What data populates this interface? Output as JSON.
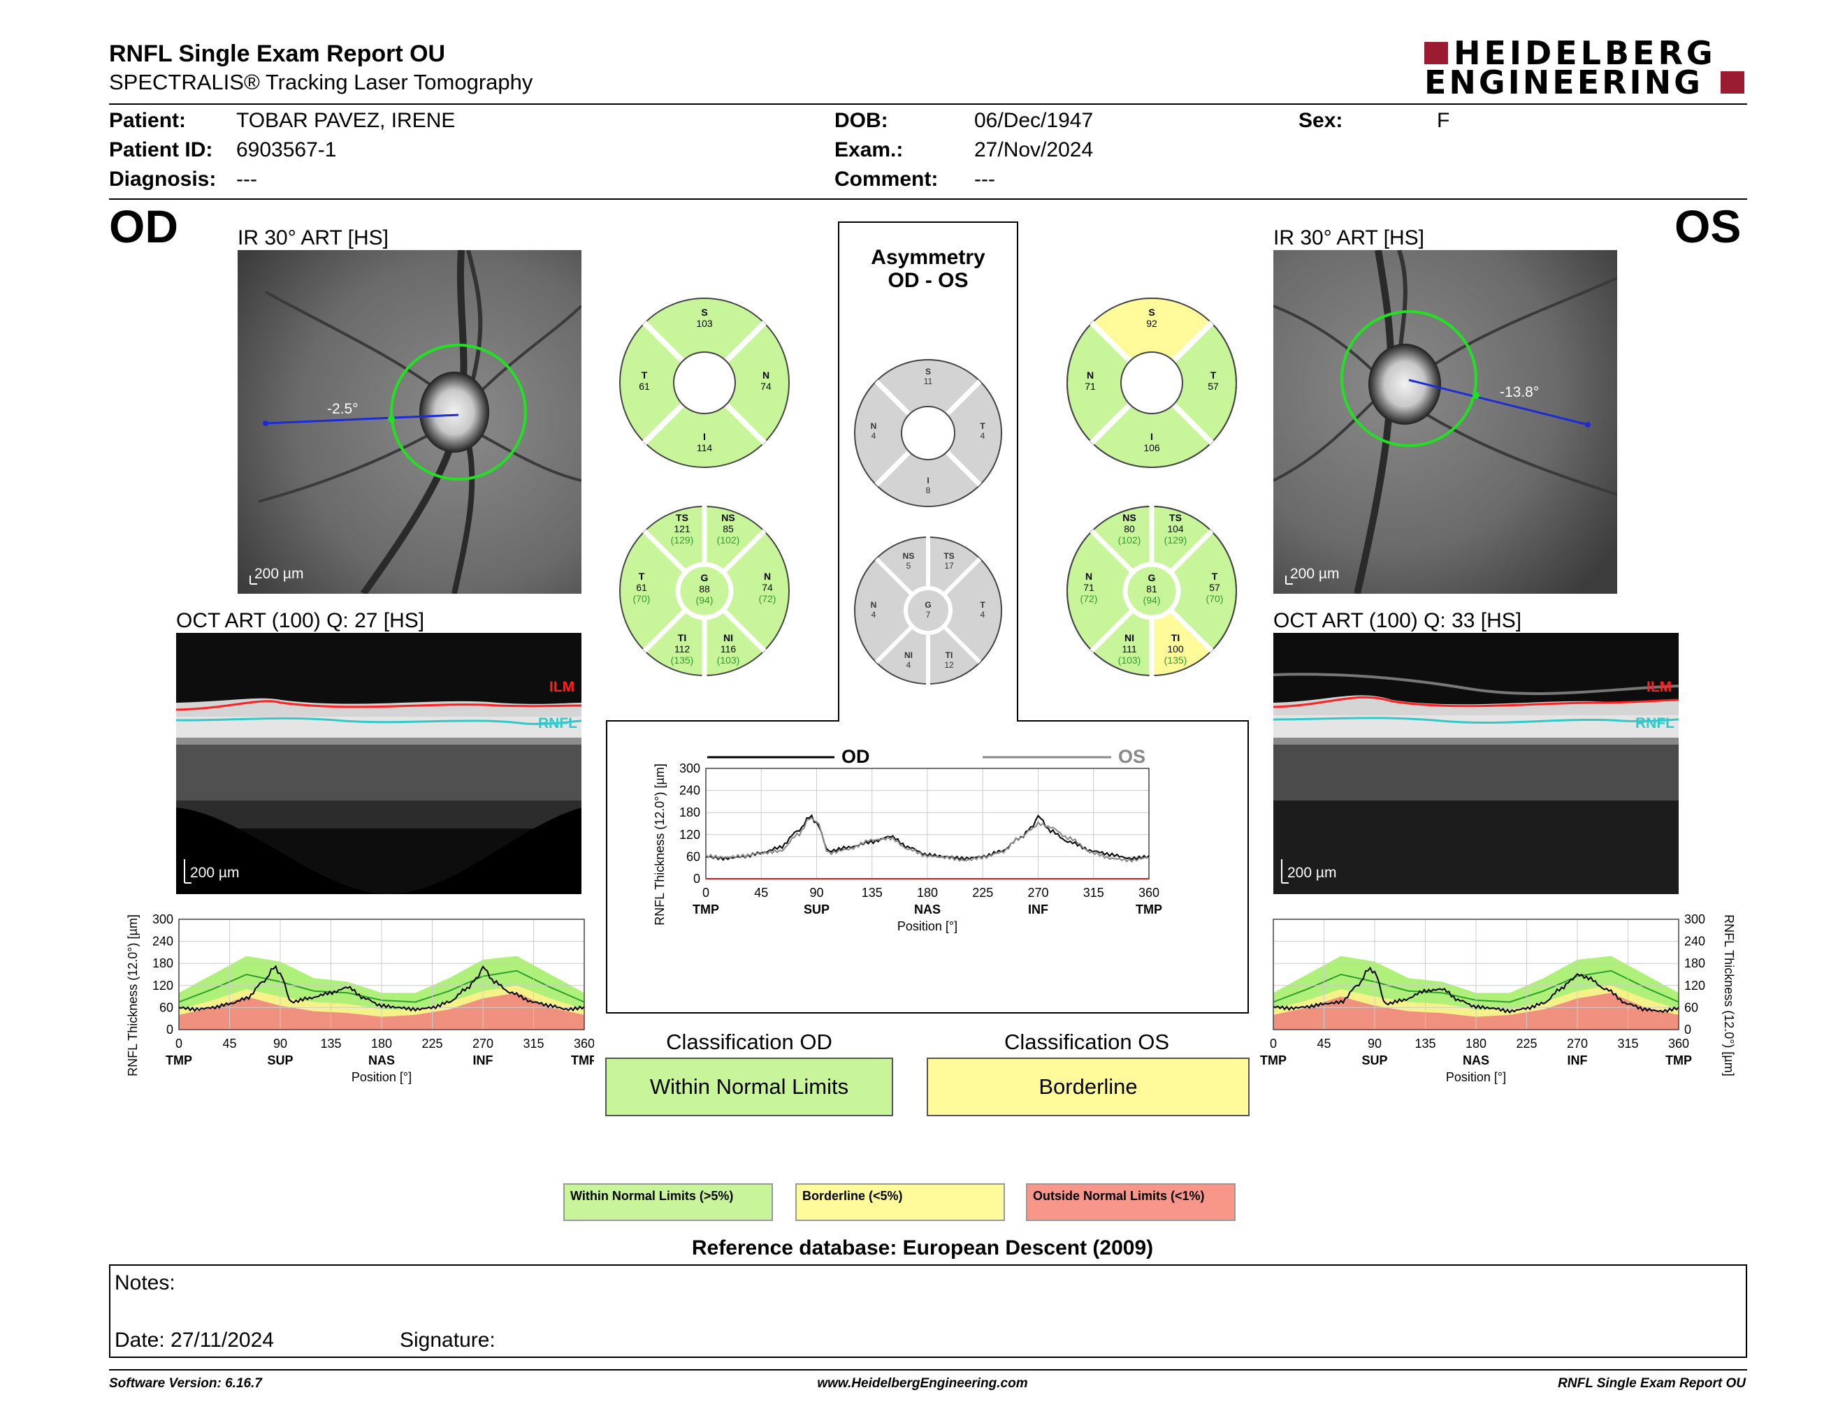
{
  "header": {
    "title": "RNFL Single Exam Report OU",
    "subtitle": "SPECTRALIS® Tracking Laser Tomography",
    "brand_line1": "HEIDELBERG",
    "brand_line2": "ENGINEERING"
  },
  "patient": {
    "patient_label": "Patient:",
    "patient_value": "TOBAR PAVEZ, IRENE",
    "id_label": "Patient ID:",
    "id_value": "6903567-1",
    "diagnosis_label": "Diagnosis:",
    "diagnosis_value": "---",
    "dob_label": "DOB:",
    "dob_value": "06/Dec/1947",
    "exam_label": "Exam.:",
    "exam_value": "27/Nov/2024",
    "comment_label": "Comment:",
    "comment_value": "---",
    "sex_label": "Sex:",
    "sex_value": "F"
  },
  "od": {
    "eye": "OD",
    "ir_title": "IR 30° ART [HS]",
    "angle": "-2.5°",
    "scale": "200 µm",
    "oct_title": "OCT ART (100) Q: 27 [HS]",
    "oct_scale": "200 µm",
    "ilm": "ILM",
    "rnfl": "RNFL",
    "quadrants": {
      "S": "103",
      "T": "61",
      "N": "74",
      "I": "114"
    },
    "sectors": {
      "TS": {
        "v": "121",
        "r": "(129)"
      },
      "NS": {
        "v": "85",
        "r": "(102)"
      },
      "T": {
        "v": "61",
        "r": "(70)"
      },
      "G": {
        "v": "88",
        "r": "(94)"
      },
      "N": {
        "v": "74",
        "r": "(72)"
      },
      "TI": {
        "v": "112",
        "r": "(135)"
      },
      "NI": {
        "v": "116",
        "r": "(103)"
      }
    }
  },
  "os": {
    "eye": "OS",
    "ir_title": "IR 30° ART [HS]",
    "angle": "-13.8°",
    "scale": "200 µm",
    "oct_title": "OCT ART (100) Q: 33 [HS]",
    "oct_scale": "200 µm",
    "ilm": "ILM",
    "rnfl": "RNFL",
    "quadrants": {
      "S": "92",
      "N": "71",
      "T": "57",
      "I": "106"
    },
    "sectors": {
      "NS": {
        "v": "80",
        "r": "(102)"
      },
      "TS": {
        "v": "104",
        "r": "(129)"
      },
      "N": {
        "v": "71",
        "r": "(72)"
      },
      "G": {
        "v": "81",
        "r": "(94)"
      },
      "T": {
        "v": "57",
        "r": "(70)"
      },
      "NI": {
        "v": "111",
        "r": "(103)"
      },
      "TI": {
        "v": "100",
        "r": "(135)"
      }
    }
  },
  "asymmetry": {
    "title_line1": "Asymmetry",
    "title_line2": "OD - OS",
    "quadrants": {
      "S": "11",
      "N": "4",
      "T": "4",
      "I": "8"
    },
    "sectors": {
      "NS": "5",
      "TS": "17",
      "N": "4",
      "G": "7",
      "T": "4",
      "NI": "4",
      "TI": "12"
    }
  },
  "chart_data": [
    {
      "type": "line",
      "name": "center-asymmetry-plot",
      "legend": [
        "OD",
        "OS"
      ],
      "ylabel": "RNFL Thickness (12.0°) [µm]",
      "xlabel": "Position [°]",
      "xticks": [
        "0",
        "45",
        "90",
        "135",
        "180",
        "225",
        "270",
        "315",
        "360"
      ],
      "xsectors": [
        "TMP",
        "SUP",
        "NAS",
        "INF",
        "TMP"
      ],
      "yticks": [
        "0",
        "60",
        "120",
        "180",
        "240",
        "300"
      ],
      "ylim": [
        0,
        300
      ],
      "xlim": [
        0,
        360
      ],
      "series": [
        {
          "name": "OD",
          "x": [
            0,
            15,
            30,
            45,
            60,
            75,
            85,
            90,
            100,
            115,
            135,
            150,
            165,
            180,
            195,
            210,
            225,
            240,
            255,
            265,
            270,
            280,
            295,
            315,
            330,
            345,
            360
          ],
          "values": [
            60,
            55,
            60,
            70,
            85,
            130,
            170,
            150,
            75,
            85,
            100,
            115,
            85,
            65,
            60,
            55,
            60,
            75,
            110,
            140,
            170,
            130,
            100,
            75,
            65,
            55,
            60
          ]
        },
        {
          "name": "OS",
          "x": [
            0,
            15,
            30,
            45,
            60,
            75,
            85,
            90,
            100,
            115,
            135,
            150,
            165,
            180,
            195,
            210,
            225,
            240,
            255,
            265,
            270,
            280,
            295,
            315,
            330,
            345,
            360
          ],
          "values": [
            62,
            58,
            62,
            70,
            75,
            120,
            165,
            155,
            70,
            80,
            105,
            110,
            80,
            62,
            58,
            50,
            58,
            72,
            110,
            135,
            150,
            140,
            110,
            70,
            55,
            50,
            58
          ]
        }
      ]
    },
    {
      "type": "line",
      "name": "od-thickness-profile",
      "ylabel": "RNFL Thickness (12.0°) [µm]",
      "xlabel": "Position [°]",
      "xticks": [
        "0",
        "45",
        "90",
        "135",
        "180",
        "225",
        "270",
        "315",
        "360"
      ],
      "xsectors": [
        "TMP",
        "SUP",
        "NAS",
        "INF",
        "TMP"
      ],
      "yticks": [
        "0",
        "60",
        "120",
        "180",
        "240",
        "300"
      ],
      "ylim": [
        0,
        300
      ],
      "series": [
        {
          "name": "OD",
          "x": [
            0,
            15,
            30,
            45,
            60,
            75,
            85,
            90,
            100,
            115,
            135,
            150,
            165,
            180,
            195,
            210,
            225,
            240,
            255,
            265,
            270,
            280,
            295,
            315,
            330,
            345,
            360
          ],
          "values": [
            60,
            55,
            60,
            70,
            85,
            130,
            170,
            150,
            75,
            85,
            100,
            115,
            85,
            65,
            60,
            55,
            60,
            75,
            110,
            140,
            170,
            130,
            100,
            75,
            65,
            55,
            60
          ]
        }
      ]
    },
    {
      "type": "line",
      "name": "os-thickness-profile",
      "ylabel": "RNFL Thickness (12.0°) [µm]",
      "xlabel": "Position [°]",
      "xticks": [
        "0",
        "45",
        "90",
        "135",
        "180",
        "225",
        "270",
        "315",
        "360"
      ],
      "xsectors": [
        "TMP",
        "SUP",
        "NAS",
        "INF",
        "TMP"
      ],
      "yticks": [
        "0",
        "60",
        "120",
        "180",
        "240",
        "300"
      ],
      "ylim": [
        0,
        300
      ],
      "series": [
        {
          "name": "OS",
          "x": [
            0,
            15,
            30,
            45,
            60,
            75,
            85,
            90,
            100,
            115,
            135,
            150,
            165,
            180,
            195,
            210,
            225,
            240,
            255,
            265,
            270,
            280,
            295,
            315,
            330,
            345,
            360
          ],
          "values": [
            62,
            58,
            62,
            70,
            75,
            120,
            165,
            155,
            70,
            80,
            105,
            110,
            80,
            62,
            58,
            50,
            58,
            72,
            110,
            135,
            150,
            140,
            110,
            70,
            55,
            50,
            58
          ]
        }
      ]
    }
  ],
  "classification": {
    "od_title": "Classification OD",
    "od_value": "Within Normal Limits",
    "os_title": "Classification OS",
    "os_value": "Borderline"
  },
  "legend": {
    "normal": "Within Normal Limits (>5%)",
    "borderline": "Borderline (<5%)",
    "outside": "Outside Normal Limits (<1%)"
  },
  "reference": "Reference database: European Descent (2009)",
  "notes": {
    "notes_label": "Notes:",
    "date_label": "Date: 27/11/2024",
    "signature_label": "Signature:"
  },
  "footer": {
    "version": "Software Version: 6.16.7",
    "website": "www.HeidelbergEngineering.com",
    "report": "RNFL Single Exam Report OU"
  },
  "colors": {
    "normal": "#c8f59a",
    "borderline": "#fffa9a",
    "outside": "#f8968a",
    "grey": "#d3d3d3",
    "brand": "#9b1b30"
  }
}
